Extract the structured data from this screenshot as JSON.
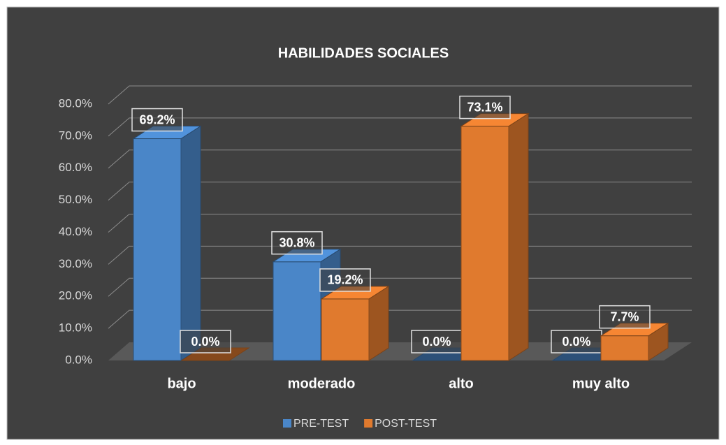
{
  "chart_data": {
    "type": "bar3d",
    "title": "HABILIDADES SOCIALES",
    "categories": [
      "bajo",
      "moderado",
      "alto",
      "muy alto"
    ],
    "series": [
      {
        "name": "PRE-TEST",
        "color": "#4a86c8",
        "values": [
          69.2,
          30.8,
          0,
          0
        ],
        "value_labels": [
          "69.2%",
          "30.8%",
          "0.0%",
          "0.0%"
        ]
      },
      {
        "name": "POST-TEST",
        "color": "#e07a2e",
        "values": [
          0,
          19.2,
          73.1,
          7.7
        ],
        "value_labels": [
          "0.0%",
          "19.2%",
          "73.1%",
          "7.7%"
        ]
      }
    ],
    "ylim": [
      0,
      80
    ],
    "yticks": [
      {
        "value": 0,
        "label": "0.0%"
      },
      {
        "value": 10,
        "label": "10.0%"
      },
      {
        "value": 20,
        "label": "20.0%"
      },
      {
        "value": 30,
        "label": "30.0%"
      },
      {
        "value": 40,
        "label": "40.0%"
      },
      {
        "value": 50,
        "label": "50.0%"
      },
      {
        "value": 60,
        "label": "60.0%"
      },
      {
        "value": 70,
        "label": "70.0%"
      },
      {
        "value": 80,
        "label": "80.0%"
      }
    ],
    "grid": true,
    "legend": "bottom"
  }
}
